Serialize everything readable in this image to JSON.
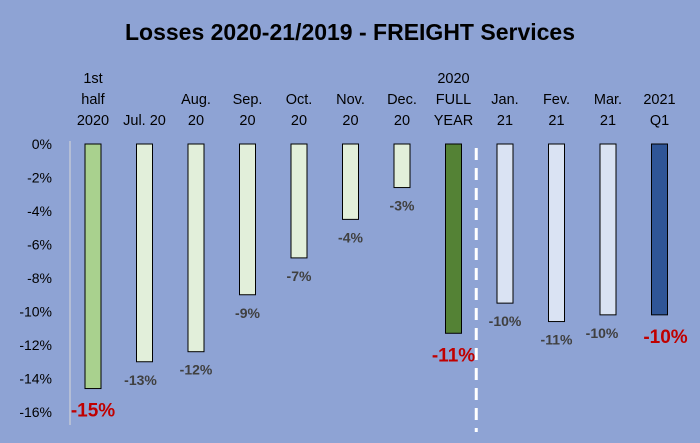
{
  "chart_data": {
    "type": "bar",
    "title": "Losses 2020-21/2019 - FREIGHT Services",
    "xlabel": "",
    "ylabel": "",
    "ylim": [
      -16,
      0
    ],
    "y_ticks": [
      "0%",
      "-2%",
      "-4%",
      "-6%",
      "-8%",
      "-10%",
      "-12%",
      "-14%",
      "-16%"
    ],
    "grid": false,
    "categories": [
      [
        "1st",
        "half",
        "2020"
      ],
      [
        "Jul. 20"
      ],
      [
        "Aug.",
        "20"
      ],
      [
        "Sep.",
        "20"
      ],
      [
        "Oct.",
        "20"
      ],
      [
        "Nov.",
        "20"
      ],
      [
        "Dec.",
        "20"
      ],
      [
        "2020",
        "FULL",
        "YEAR"
      ],
      [
        "Jan.",
        "21"
      ],
      [
        "Fev.",
        "21"
      ],
      [
        "Mar.",
        "21"
      ],
      [
        "2021",
        "Q1"
      ]
    ],
    "values": [
      -14.6,
      -13.0,
      -12.4,
      -9.0,
      -6.8,
      -4.5,
      -2.6,
      -11.3,
      -9.5,
      -10.6,
      -10.2,
      -10.2
    ],
    "data_labels": [
      "-15%",
      "-13%",
      "-12%",
      "-9%",
      "-7%",
      "-4%",
      "-3%",
      "-11%",
      "-10%",
      "-11%",
      "-10%",
      "-10%"
    ],
    "colors": {
      "background": "#8ea3d4",
      "first_half_2020": "#a9d18e",
      "months_2020": "#e2efda",
      "full_year_2020": "#548235",
      "months_2021": "#dae3f3",
      "q1_2021": "#2f5597",
      "highlight_label": "#c00000",
      "divider": "#ffffff"
    },
    "bar_colors": [
      "first_half_2020",
      "months_2020",
      "months_2020",
      "months_2020",
      "months_2020",
      "months_2020",
      "months_2020",
      "full_year_2020",
      "months_2021",
      "months_2021",
      "months_2021",
      "q1_2021"
    ],
    "highlighted_labels": [
      0,
      7,
      11
    ],
    "divider_after_index": 7
  }
}
